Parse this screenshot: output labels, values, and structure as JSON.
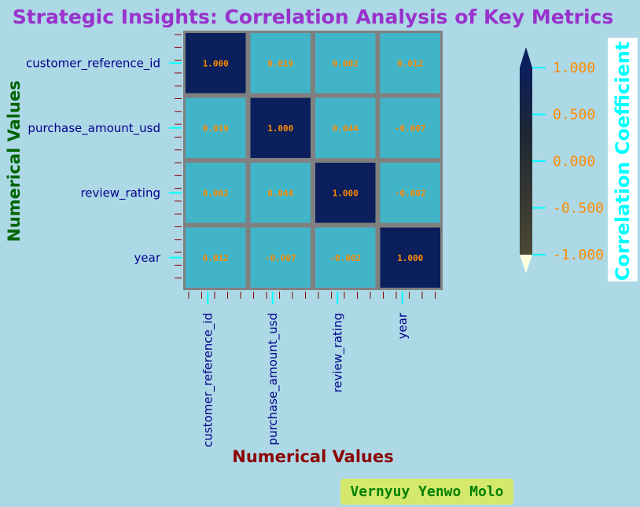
{
  "chart_data": {
    "type": "heatmap",
    "title": "Strategic Insights: Correlation Analysis of Key Metrics",
    "xlabel": "Numerical Values",
    "ylabel": "Numerical Values",
    "x_categories": [
      "customer_reference_id",
      "purchase_amount_usd",
      "review_rating",
      "year"
    ],
    "y_categories": [
      "customer_reference_id",
      "purchase_amount_usd",
      "review_rating",
      "year"
    ],
    "values": [
      [
        1.0,
        0.019,
        0.002,
        0.012
      ],
      [
        0.019,
        1.0,
        0.044,
        -0.007
      ],
      [
        0.002,
        0.044,
        1.0,
        -0.002
      ],
      [
        0.012,
        -0.007,
        -0.002,
        1.0
      ]
    ],
    "value_labels": [
      [
        "1.000",
        "0.019",
        "0.002",
        "0.012"
      ],
      [
        "0.019",
        "1.000",
        "0.044",
        "-0.007"
      ],
      [
        "0.002",
        "0.044",
        "1.000",
        "-0.002"
      ],
      [
        "0.012",
        "-0.007",
        "-0.002",
        "1.000"
      ]
    ],
    "colorbar": {
      "label": "Correlation Coefficient",
      "range": [
        -1.0,
        1.0
      ],
      "ticks": [
        1.0,
        0.5,
        0.0,
        -0.5,
        -1.0
      ],
      "tick_labels": [
        "1.000",
        "0.500",
        "0.000",
        "-0.500",
        "-1.000"
      ]
    },
    "colors": {
      "background": "#add8e6",
      "cell_high": "#0b1f5c",
      "cell_low": "#42b4c8",
      "grid": "#808080",
      "title": "#9932cc",
      "xlabel": "#8b0000",
      "ylabel": "#006400",
      "colorbar_label": "#00ffff",
      "cell_text": "#ff8c00"
    }
  },
  "author": "Vernyuy Yenwo Molo"
}
